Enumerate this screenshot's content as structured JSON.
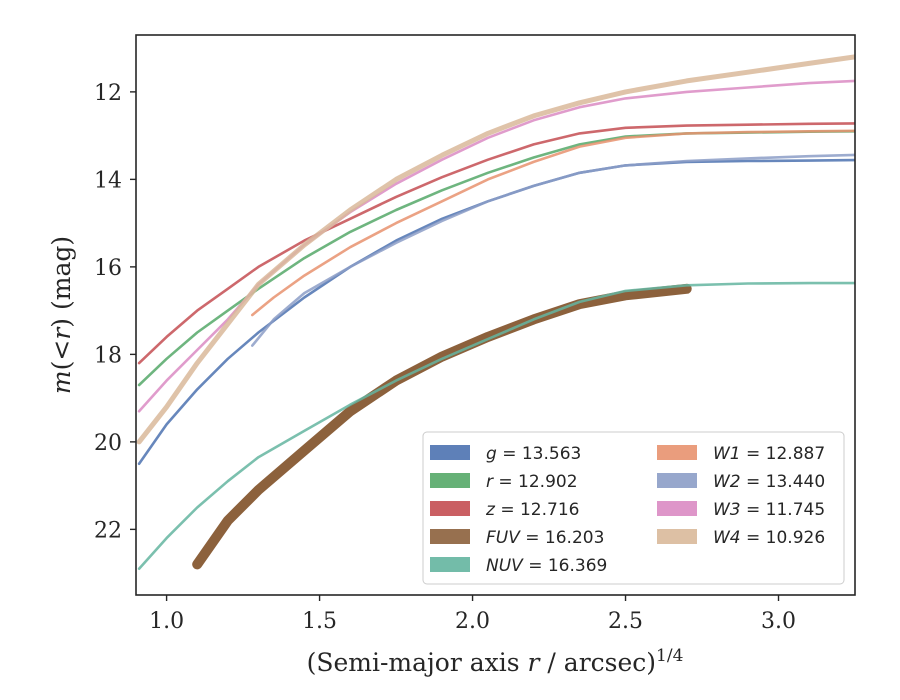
{
  "chart_data": {
    "type": "line",
    "xlabel": "(Semi-major axis r / arcsec)^1/4",
    "ylabel": "m(<r) (mag)",
    "xlim": [
      0.9,
      3.25
    ],
    "ylim": [
      23.5,
      10.7
    ],
    "y_inverted": true,
    "xticks": [
      "1.0",
      "1.5",
      "2.0",
      "2.5",
      "3.0"
    ],
    "yticks": [
      "12",
      "14",
      "16",
      "18",
      "20",
      "22"
    ],
    "legend_placement": "lower-right",
    "legend_columns": 2,
    "series": [
      {
        "name": "g = 13.563",
        "band": "g",
        "total_mag": "13.563",
        "color": "#4c72b0",
        "x": [
          0.91,
          1.0,
          1.1,
          1.2,
          1.3,
          1.45,
          1.6,
          1.75,
          1.9,
          2.05,
          2.2,
          2.35,
          2.5,
          2.7,
          2.9,
          3.1,
          3.25
        ],
        "y": [
          20.5,
          19.6,
          18.8,
          18.1,
          17.5,
          16.7,
          16.0,
          15.4,
          14.9,
          14.5,
          14.15,
          13.85,
          13.68,
          13.6,
          13.58,
          13.57,
          13.56
        ]
      },
      {
        "name": "r = 12.902",
        "band": "r",
        "total_mag": "12.902",
        "color": "#55a868",
        "x": [
          0.91,
          1.0,
          1.1,
          1.2,
          1.3,
          1.45,
          1.6,
          1.75,
          1.9,
          2.05,
          2.2,
          2.35,
          2.5,
          2.7,
          2.9,
          3.1,
          3.25
        ],
        "y": [
          18.7,
          18.1,
          17.5,
          17.0,
          16.5,
          15.8,
          15.2,
          14.7,
          14.25,
          13.85,
          13.5,
          13.2,
          13.02,
          12.95,
          12.93,
          12.91,
          12.9
        ]
      },
      {
        "name": "z = 12.716",
        "band": "z",
        "total_mag": "12.716",
        "color": "#c44e52",
        "x": [
          0.91,
          1.0,
          1.1,
          1.2,
          1.3,
          1.45,
          1.6,
          1.75,
          1.9,
          2.05,
          2.2,
          2.35,
          2.5,
          2.7,
          2.9,
          3.1,
          3.25
        ],
        "y": [
          18.2,
          17.6,
          17.0,
          16.5,
          16.0,
          15.4,
          14.9,
          14.4,
          13.95,
          13.55,
          13.2,
          12.95,
          12.82,
          12.77,
          12.75,
          12.73,
          12.72
        ]
      },
      {
        "name": "FUV = 16.203",
        "band": "FUV",
        "total_mag": "16.203",
        "color": "#8c613c",
        "x": [
          1.1,
          1.15,
          1.2,
          1.3,
          1.45,
          1.6,
          1.75,
          1.9,
          2.05,
          2.2,
          2.35,
          2.5,
          2.7
        ],
        "y": [
          22.8,
          22.3,
          21.8,
          21.1,
          20.2,
          19.3,
          18.6,
          18.05,
          17.6,
          17.2,
          16.85,
          16.65,
          16.5
        ]
      },
      {
        "name": "NUV = 16.369",
        "band": "NUV",
        "total_mag": "16.369",
        "color": "#64b5a0",
        "x": [
          0.91,
          1.0,
          1.1,
          1.2,
          1.3,
          1.45,
          1.6,
          1.75,
          1.9,
          2.05,
          2.2,
          2.35,
          2.5,
          2.7,
          2.9,
          3.1,
          3.25
        ],
        "y": [
          22.9,
          22.2,
          21.5,
          20.9,
          20.35,
          19.75,
          19.15,
          18.6,
          18.1,
          17.65,
          17.2,
          16.8,
          16.55,
          16.42,
          16.38,
          16.37,
          16.37
        ]
      },
      {
        "name": "W1 = 12.887",
        "band": "W1",
        "total_mag": "12.887",
        "color": "#e8926f",
        "x": [
          1.28,
          1.35,
          1.45,
          1.6,
          1.75,
          1.9,
          2.05,
          2.2,
          2.35,
          2.5,
          2.7,
          2.9,
          3.1,
          3.25
        ],
        "y": [
          17.1,
          16.7,
          16.2,
          15.55,
          15.0,
          14.5,
          14.0,
          13.6,
          13.25,
          13.05,
          12.95,
          12.92,
          12.9,
          12.89
        ]
      },
      {
        "name": "W2 = 13.440",
        "band": "W2",
        "total_mag": "13.440",
        "color": "#8c9dc7",
        "x": [
          1.28,
          1.35,
          1.45,
          1.6,
          1.75,
          1.9,
          2.05,
          2.2,
          2.35,
          2.5,
          2.7,
          2.9,
          3.1,
          3.25
        ],
        "y": [
          17.8,
          17.2,
          16.6,
          16.0,
          15.45,
          14.95,
          14.5,
          14.15,
          13.85,
          13.68,
          13.58,
          13.52,
          13.47,
          13.44
        ]
      },
      {
        "name": "W3 = 11.745",
        "band": "W3",
        "total_mag": "11.745",
        "color": "#da8bc3",
        "x": [
          0.91,
          1.0,
          1.1,
          1.2,
          1.3,
          1.45,
          1.6,
          1.75,
          1.9,
          2.05,
          2.2,
          2.35,
          2.5,
          2.7,
          2.9,
          3.1,
          3.25
        ],
        "y": [
          19.3,
          18.6,
          17.9,
          17.2,
          16.4,
          15.5,
          14.75,
          14.1,
          13.55,
          13.05,
          12.65,
          12.35,
          12.15,
          12.0,
          11.9,
          11.8,
          11.75
        ]
      },
      {
        "name": "W4 = 10.926",
        "band": "W4",
        "total_mag": "10.926",
        "color": "#d9b99a",
        "x": [
          0.91,
          1.0,
          1.1,
          1.2,
          1.3,
          1.45,
          1.6,
          1.75,
          1.9,
          2.05,
          2.2,
          2.35,
          2.5,
          2.7,
          2.9,
          3.1,
          3.25
        ],
        "y": [
          20.0,
          19.2,
          18.2,
          17.3,
          16.4,
          15.5,
          14.7,
          14.0,
          13.45,
          12.95,
          12.55,
          12.25,
          12.0,
          11.75,
          11.55,
          11.35,
          11.2
        ]
      }
    ]
  }
}
